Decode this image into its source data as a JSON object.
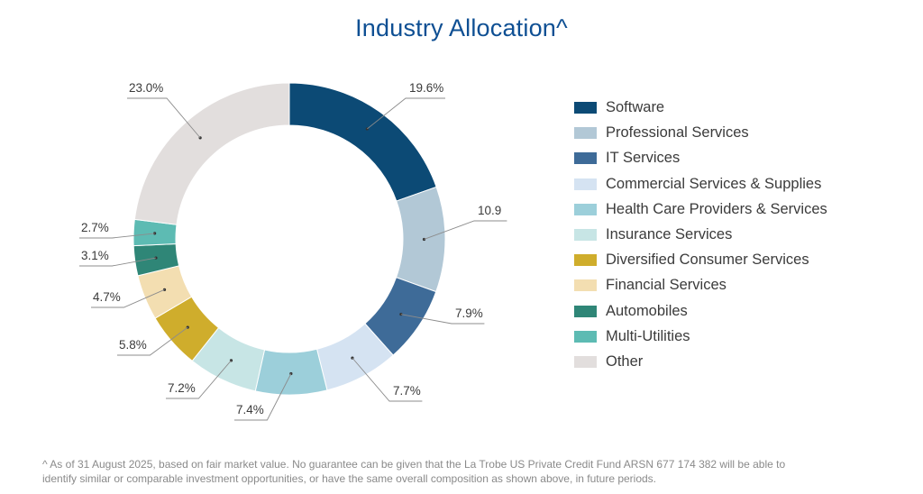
{
  "title": "Industry Allocation^",
  "chart_data": {
    "type": "pie",
    "title": "Industry Allocation^",
    "categories": [
      "Software",
      "Professional Services",
      "IT Services",
      "Commercial Services & Supplies",
      "Health Care Providers & Services",
      "Insurance Services",
      "Diversified Consumer Services",
      "Financial Services",
      "Automobiles",
      "Multi-Utilities",
      "Other"
    ],
    "values": [
      19.6,
      10.9,
      7.9,
      7.7,
      7.4,
      7.2,
      5.8,
      4.7,
      3.1,
      2.7,
      23.0
    ],
    "data_labels": [
      "19.6%",
      "10.9",
      "7.9%",
      "7.7%",
      "7.4%",
      "7.2%",
      "5.8%",
      "4.7%",
      "3.1%",
      "2.7%",
      "23.0%"
    ],
    "colors": [
      "#0c4a75",
      "#b2c8d6",
      "#3e6b98",
      "#d5e3f2",
      "#9ccfda",
      "#c7e5e5",
      "#cfad2c",
      "#f3deb1",
      "#2f8677",
      "#5dbbb3",
      "#e2dedd"
    ],
    "donut": true,
    "legend_position": "right"
  },
  "footnote": {
    "line1": "^ As of 31 August 2025, based on fair market value. No guarantee can be given that the La Trobe US Private Credit Fund ARSN 677 174 382 will be able to",
    "line2": "identify similar or comparable investment opportunities, or have the same overall composition as shown above, in future periods."
  }
}
